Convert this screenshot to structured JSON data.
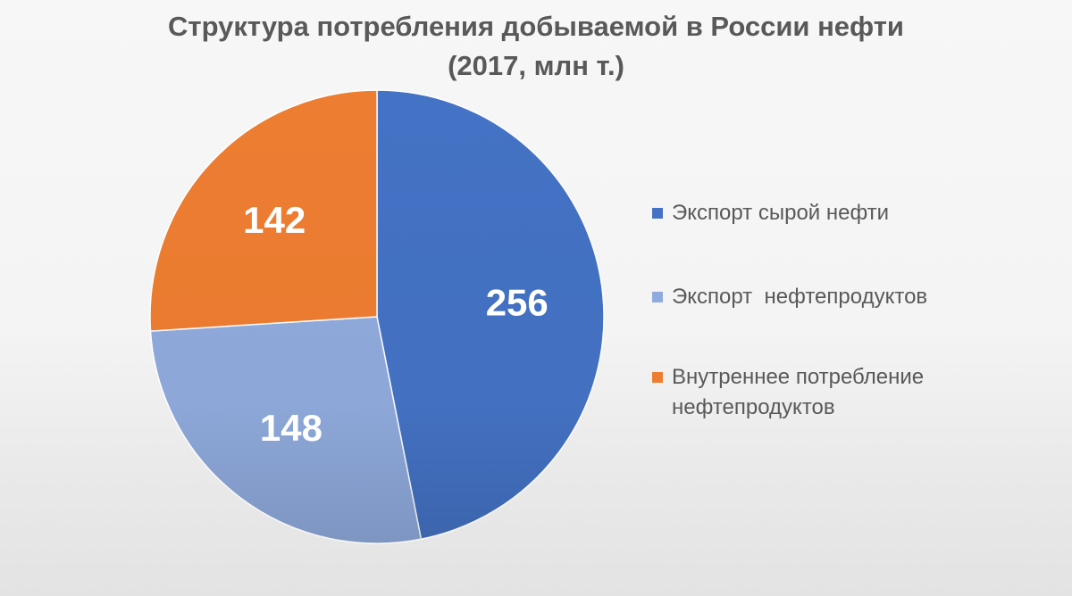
{
  "chart_data": {
    "type": "pie",
    "title_line1": "Структура потребления добываемой в России нефти",
    "title_line2": "(2017, млн т.)",
    "series": [
      {
        "name": "Экспорт сырой нефти",
        "value": 256,
        "color": "#4472c4"
      },
      {
        "name": "Экспорт  нефтепродуктов",
        "value": 148,
        "color": "#8faadc"
      },
      {
        "name": "Внутреннее потребление\nнефтепродуктов",
        "value": 142,
        "color": "#ed7d31"
      }
    ],
    "legend_position": "right"
  }
}
